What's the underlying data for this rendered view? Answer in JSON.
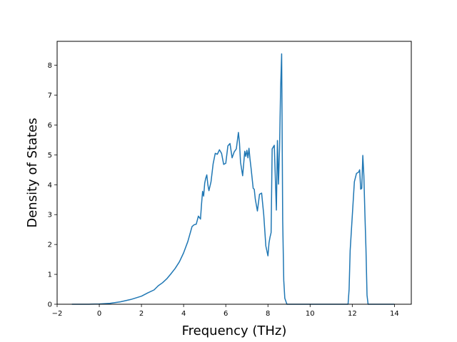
{
  "chart_data": {
    "type": "line",
    "title": "",
    "xlabel": "Frequency (THz)",
    "ylabel": "Density of States",
    "xlim": [
      -2,
      14.8
    ],
    "ylim": [
      0,
      8.8
    ],
    "xticks": [
      -2,
      0,
      2,
      4,
      6,
      8,
      10,
      12,
      14
    ],
    "yticks": [
      0,
      1,
      2,
      3,
      4,
      5,
      6,
      7,
      8
    ],
    "grid": false,
    "legend": "none",
    "series": [
      {
        "color": "#1f77b4",
        "x": [
          -1.3,
          -1.0,
          -0.5,
          0.0,
          0.5,
          1.0,
          1.5,
          2.0,
          2.3,
          2.6,
          2.8,
          3.0,
          3.2,
          3.4,
          3.6,
          3.8,
          4.0,
          4.2,
          4.4,
          4.5,
          4.6,
          4.7,
          4.8,
          4.85,
          4.9,
          4.95,
          5.0,
          5.05,
          5.1,
          5.15,
          5.2,
          5.3,
          5.4,
          5.5,
          5.6,
          5.7,
          5.8,
          5.9,
          6.0,
          6.1,
          6.2,
          6.3,
          6.4,
          6.5,
          6.6,
          6.65,
          6.7,
          6.8,
          6.9,
          6.95,
          7.0,
          7.05,
          7.1,
          7.15,
          7.2,
          7.3,
          7.35,
          7.4,
          7.5,
          7.6,
          7.7,
          7.8,
          7.9,
          8.0,
          8.05,
          8.1,
          8.15,
          8.2,
          8.3,
          8.4,
          8.45,
          8.5,
          8.55,
          8.6,
          8.65,
          8.7,
          8.75,
          8.8,
          8.9,
          9.5,
          10.0,
          11.0,
          11.8,
          11.85,
          11.9,
          12.0,
          12.1,
          12.2,
          12.3,
          12.35,
          12.4,
          12.45,
          12.5,
          12.55,
          12.6,
          12.65,
          12.7,
          12.75,
          13.0,
          14.0
        ],
        "y": [
          0.0,
          0.0,
          0.0,
          0.01,
          0.03,
          0.08,
          0.16,
          0.27,
          0.38,
          0.48,
          0.62,
          0.72,
          0.85,
          1.02,
          1.2,
          1.42,
          1.72,
          2.1,
          2.6,
          2.66,
          2.68,
          2.95,
          2.85,
          3.35,
          3.78,
          3.62,
          4.05,
          4.22,
          4.33,
          4.0,
          3.8,
          4.1,
          4.7,
          5.05,
          5.02,
          5.17,
          5.05,
          4.68,
          4.72,
          5.3,
          5.38,
          4.9,
          5.1,
          5.2,
          5.75,
          5.4,
          4.75,
          4.3,
          5.12,
          4.95,
          5.15,
          4.9,
          5.22,
          4.85,
          4.55,
          3.88,
          3.85,
          3.52,
          3.12,
          3.68,
          3.72,
          3.0,
          1.95,
          1.62,
          2.05,
          2.25,
          2.4,
          5.2,
          5.32,
          3.15,
          5.48,
          4.02,
          5.2,
          7.2,
          8.38,
          2.8,
          0.8,
          0.2,
          0.0,
          0.0,
          0.0,
          0.0,
          0.0,
          0.5,
          1.8,
          2.95,
          4.1,
          4.38,
          4.42,
          4.5,
          3.85,
          3.88,
          4.98,
          4.3,
          3.0,
          1.85,
          0.3,
          0.0,
          0.0,
          0.0
        ]
      }
    ]
  }
}
